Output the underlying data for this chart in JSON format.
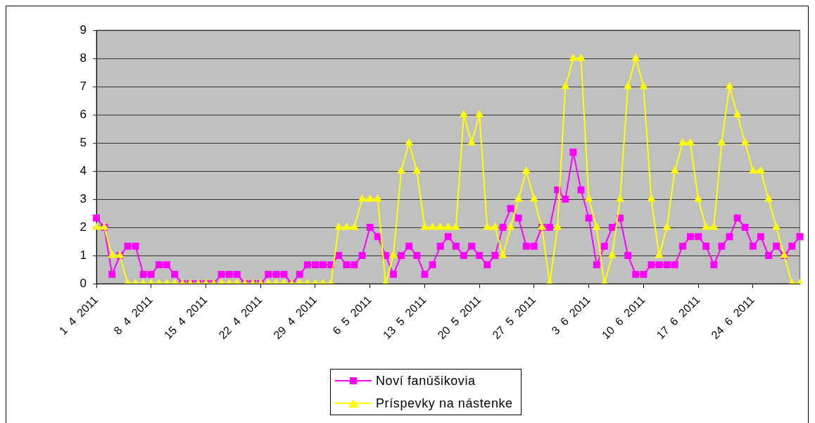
{
  "chart_data": {
    "type": "line",
    "categories": [
      "1  4  2011",
      null,
      null,
      null,
      null,
      null,
      null,
      "8  4  2011",
      null,
      null,
      null,
      null,
      null,
      null,
      "15  4  2011",
      null,
      null,
      null,
      null,
      null,
      null,
      "22  4  2011",
      null,
      null,
      null,
      null,
      null,
      null,
      "29  4  2011",
      null,
      null,
      null,
      null,
      null,
      null,
      "6  5  2011",
      null,
      null,
      null,
      null,
      null,
      null,
      "13  5  2011",
      null,
      null,
      null,
      null,
      null,
      null,
      "20  5  2011",
      null,
      null,
      null,
      null,
      null,
      null,
      "27  5  2011",
      null,
      null,
      null,
      null,
      null,
      null,
      "3  6  2011",
      null,
      null,
      null,
      null,
      null,
      null,
      "10  6  2011",
      null,
      null,
      null,
      null,
      null,
      null,
      "17  6  2011",
      null,
      null,
      null,
      null,
      null,
      null,
      "24  6  2011",
      null,
      null,
      null,
      null,
      null,
      null
    ],
    "series": [
      {
        "name": "Noví fanúšikovia",
        "color": "#ff00ff",
        "marker": "square",
        "values": [
          2.33,
          2,
          0.33,
          1,
          1.33,
          1.33,
          0.33,
          0.33,
          0.67,
          0.67,
          0.33,
          0,
          0,
          0,
          0,
          0,
          0.33,
          0.33,
          0.33,
          0,
          0,
          0,
          0.33,
          0.33,
          0.33,
          0,
          0.33,
          0.67,
          0.67,
          0.67,
          0.67,
          1,
          0.67,
          0.67,
          1,
          2,
          1.67,
          1,
          0.33,
          1,
          1.33,
          1,
          0.33,
          0.67,
          1.33,
          1.67,
          1.33,
          1,
          1.33,
          1,
          0.67,
          1,
          2,
          2.67,
          2.33,
          1.33,
          1.33,
          2,
          2,
          3.33,
          3,
          4.67,
          3.33,
          2.33,
          0.67,
          1.33,
          2,
          2.33,
          1,
          0.33,
          0.33,
          0.67,
          0.67,
          0.67,
          0.67,
          1.33,
          1.67,
          1.67,
          1.33,
          0.67,
          1.33,
          1.67,
          2.33,
          2,
          1.33,
          1.67,
          1,
          1.33,
          1,
          1.33,
          1.67
        ]
      },
      {
        "name": "Príspevky na nástenke",
        "color": "#ffff00",
        "marker": "triangle",
        "values": [
          2,
          2,
          1,
          1,
          0,
          0,
          0,
          0,
          0,
          0,
          0,
          0,
          0,
          0,
          0,
          0,
          0,
          0,
          0,
          0,
          0,
          0,
          0,
          0,
          0,
          0,
          0,
          0,
          0,
          0,
          0,
          2,
          2,
          2,
          3,
          3,
          3,
          0,
          1,
          4,
          5,
          4,
          2,
          2,
          2,
          2,
          2,
          6,
          5,
          6,
          2,
          2,
          1,
          2,
          3,
          4,
          3,
          2,
          0,
          2,
          7,
          8,
          8,
          3,
          2,
          0,
          1,
          3,
          7,
          8,
          7,
          3,
          1,
          2,
          4,
          5,
          5,
          3,
          2,
          2,
          5,
          7,
          6,
          5,
          4,
          4,
          3,
          2,
          1,
          0,
          0
        ]
      }
    ],
    "ylim": [
      0,
      9
    ],
    "yticks": [
      0,
      1,
      2,
      3,
      4,
      5,
      6,
      7,
      8,
      9
    ],
    "grid": "y",
    "legend": "bottom",
    "line_style": "solid"
  }
}
